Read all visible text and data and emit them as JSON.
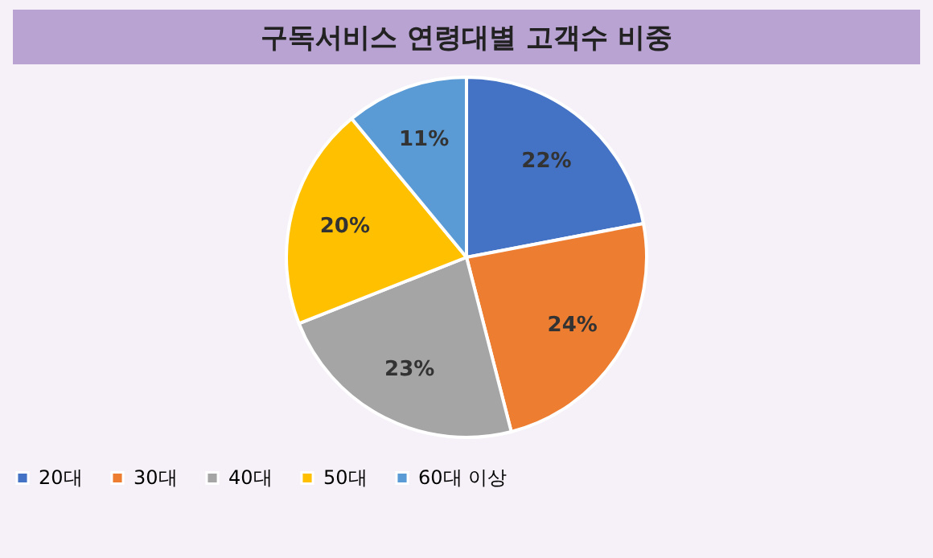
{
  "chart_data": {
    "type": "pie",
    "title": "구독서비스 연령대별 고객수 비중",
    "categories": [
      "20대",
      "30대",
      "40대",
      "50대",
      "60대 이상"
    ],
    "values": [
      22,
      24,
      23,
      20,
      11
    ],
    "value_labels": [
      "22%",
      "24%",
      "23%",
      "20%",
      "11%"
    ],
    "colors": [
      "#4472c4",
      "#ed7d31",
      "#a5a5a5",
      "#ffc000",
      "#5b9bd5"
    ],
    "legend": "bottom"
  }
}
